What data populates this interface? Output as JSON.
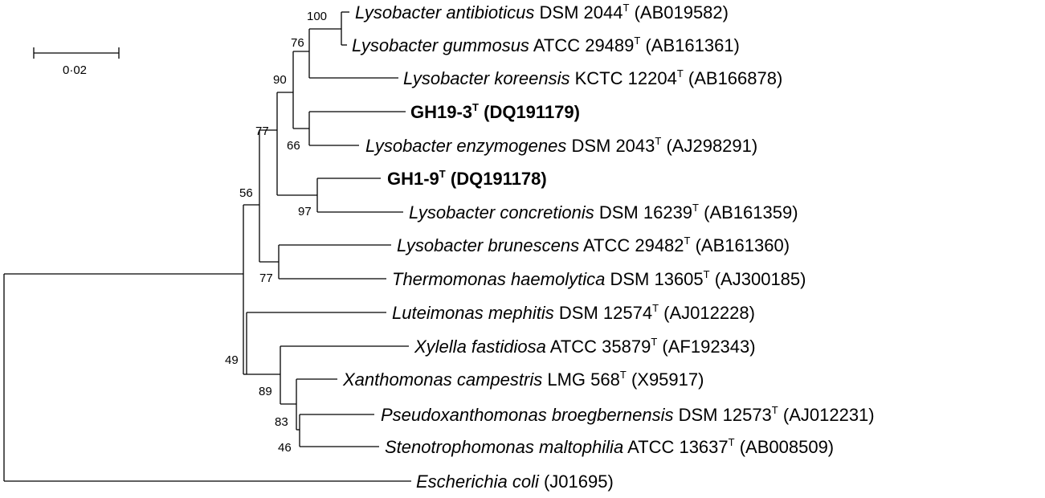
{
  "scale_bar": {
    "label": "0·02"
  },
  "taxa": [
    {
      "id": "l-antibioticus",
      "species": "Lysobacter antibioticus",
      "strain": "DSM 2044",
      "type_mark": "T",
      "accession": "(AB019582)",
      "bold": false
    },
    {
      "id": "l-gummosus",
      "species": "Lysobacter gummosus",
      "strain": "ATCC 29489",
      "type_mark": "T",
      "accession": "(AB161361)",
      "bold": false
    },
    {
      "id": "l-koreensis",
      "species": "Lysobacter koreensis",
      "strain": "KCTC 12204",
      "type_mark": "T",
      "accession": "(AB166878)",
      "bold": false
    },
    {
      "id": "gh19-3",
      "species": "",
      "strain": "GH19-3",
      "type_mark": "T",
      "accession": "(DQ191179)",
      "bold": true
    },
    {
      "id": "l-enzymogenes",
      "species": "Lysobacter enzymogenes",
      "strain": "DSM 2043",
      "type_mark": "T",
      "accession": "(AJ298291)",
      "bold": false
    },
    {
      "id": "gh1-9",
      "species": "",
      "strain": "GH1-9",
      "type_mark": "T",
      "accession": "(DQ191178)",
      "bold": true
    },
    {
      "id": "l-concretionis",
      "species": "Lysobacter concretionis",
      "strain": "DSM 16239",
      "type_mark": "T",
      "accession": "(AB161359)",
      "bold": false
    },
    {
      "id": "l-brunescens",
      "species": "Lysobacter brunescens",
      "strain": "ATCC 29482",
      "type_mark": "T",
      "accession": "(AB161360)",
      "bold": false
    },
    {
      "id": "t-haemolytica",
      "species": "Thermomonas haemolytica",
      "strain": "DSM 13605",
      "type_mark": "T",
      "accession": "(AJ300185)",
      "bold": false
    },
    {
      "id": "l-mephitis",
      "species": "Luteimonas mephitis",
      "strain": "DSM 12574",
      "type_mark": "T",
      "accession": "(AJ012228)",
      "bold": false
    },
    {
      "id": "x-fastidiosa",
      "species": "Xylella fastidiosa",
      "strain": "ATCC 35879",
      "type_mark": "T",
      "accession": "(AF192343)",
      "bold": false
    },
    {
      "id": "x-campestris",
      "species": "Xanthomonas campestris",
      "strain": "LMG 568",
      "type_mark": "T",
      "accession": "(X95917)",
      "bold": false
    },
    {
      "id": "p-broegbernensis",
      "species": "Pseudoxanthomonas broegbernensis",
      "strain": "DSM 12573",
      "type_mark": "T",
      "accession": "(AJ012231)",
      "bold": false
    },
    {
      "id": "s-maltophilia",
      "species": "Stenotrophomonas maltophilia",
      "strain": "ATCC 13637",
      "type_mark": "T",
      "accession": "(AB008509)",
      "bold": false
    },
    {
      "id": "e-coli",
      "species": "Escherichia coli",
      "strain": "",
      "type_mark": "",
      "accession": "(J01695)",
      "bold": false
    }
  ],
  "bootstrap": [
    "100",
    "76",
    "90",
    "77",
    "66",
    "56",
    "97",
    "77",
    "49",
    "89",
    "83",
    "46"
  ]
}
